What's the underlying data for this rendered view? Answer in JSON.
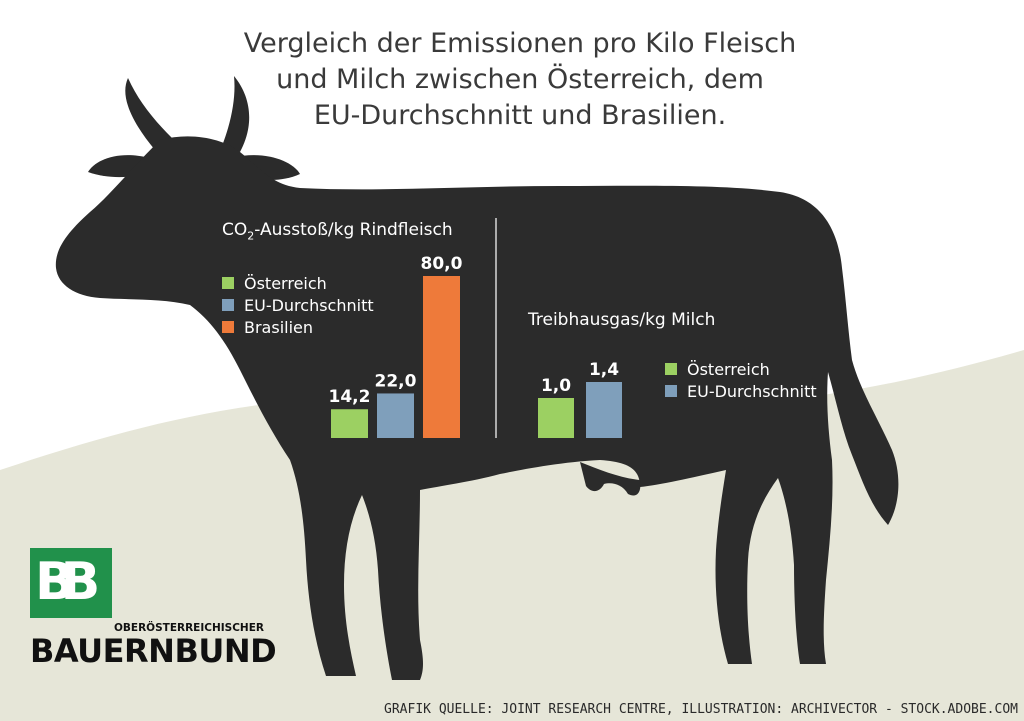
{
  "title_lines": [
    "Vergleich der Emissionen pro Kilo Fleisch",
    "und Milch zwischen Österreich, dem",
    "EU-Durchschnitt und Brasilien."
  ],
  "colors": {
    "oesterreich": "#9cd062",
    "eu": "#7f9fbb",
    "brasilien": "#ee7a3a",
    "cow": "#2b2b2b",
    "ground": "#e6e6d8",
    "logo_green": "#21914b"
  },
  "chart_data": [
    {
      "type": "bar",
      "title_main": "CO",
      "title_sub": "2",
      "title_rest": "-Ausstoß/kg Rindfleisch",
      "categories": [
        "Österreich",
        "EU-Durchschnitt",
        "Brasilien"
      ],
      "values": [
        14.2,
        22.0,
        80.0
      ],
      "value_labels": [
        "14,2",
        "22,0",
        "80,0"
      ],
      "legend": [
        "Österreich",
        "EU-Durchschnitt",
        "Brasilien"
      ],
      "legend_position": "top-left",
      "ylim": [
        0,
        80
      ],
      "grid": false
    },
    {
      "type": "bar",
      "title": "Treibhausgas/kg Milch",
      "categories": [
        "Österreich",
        "EU-Durchschnitt"
      ],
      "values": [
        1.0,
        1.4
      ],
      "value_labels": [
        "1,0",
        "1,4"
      ],
      "legend": [
        "Österreich",
        "EU-Durchschnitt"
      ],
      "legend_position": "right",
      "ylim": [
        0,
        1.4
      ],
      "grid": false
    }
  ],
  "logo": {
    "glyph": "BB",
    "subtitle": "OBERÖSTERREICHISCHER",
    "name": "BAUERNBUND"
  },
  "source": "GRAFIK QUELLE: JOINT RESEARCH CENTRE, ILLUSTRATION: ARCHIVECTOR - STOCK.ADOBE.COM"
}
